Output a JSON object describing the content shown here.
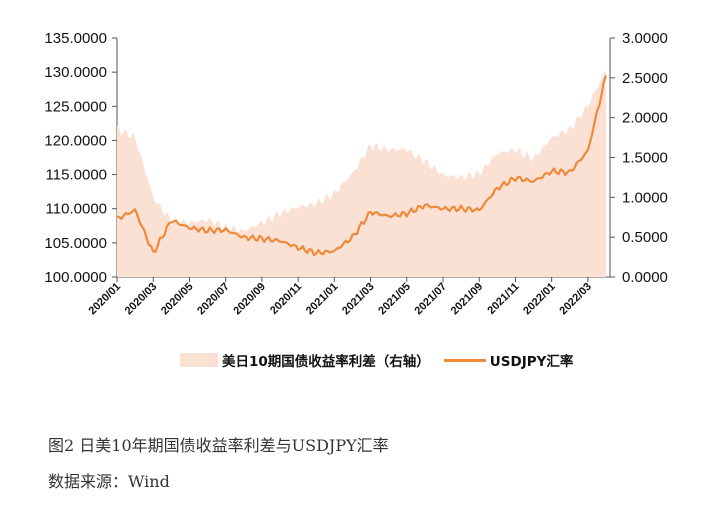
{
  "chart_data": {
    "type": "line",
    "x_tick_labels": [
      "2020/01",
      "2020/03",
      "2020/05",
      "2020/07",
      "2020/09",
      "2020/11",
      "2021/01",
      "2021/03",
      "2021/05",
      "2021/07",
      "2021/09",
      "2021/11",
      "2022/01",
      "2022/03"
    ],
    "y_left": {
      "ticks": [
        "100.0000",
        "105.0000",
        "110.0000",
        "115.0000",
        "120.0000",
        "125.0000",
        "130.0000",
        "135.0000"
      ],
      "ylim": [
        100,
        135
      ]
    },
    "y_right": {
      "ticks": [
        "0.0000",
        "0.5000",
        "1.0000",
        "1.5000",
        "2.0000",
        "2.5000",
        "3.0000"
      ],
      "ylim": [
        0,
        3
      ]
    },
    "series": [
      {
        "name": "美日10期国债收益率利差（右轴）",
        "type": "area",
        "axis": "right",
        "color": "#fbe1d3",
        "x": [
          "2020/01",
          "2020/02",
          "2020/03",
          "2020/04",
          "2020/05",
          "2020/06",
          "2020/07",
          "2020/08",
          "2020/09",
          "2020/10",
          "2020/11",
          "2020/12",
          "2021/01",
          "2021/02",
          "2021/03",
          "2021/04",
          "2021/05",
          "2021/06",
          "2021/07",
          "2021/08",
          "2021/09",
          "2021/10",
          "2021/11",
          "2021/12",
          "2022/01",
          "2022/02",
          "2022/03",
          "2022/04"
        ],
        "values": [
          1.85,
          1.75,
          1.0,
          0.7,
          0.68,
          0.72,
          0.62,
          0.58,
          0.68,
          0.8,
          0.88,
          0.92,
          1.05,
          1.3,
          1.65,
          1.6,
          1.6,
          1.45,
          1.28,
          1.25,
          1.3,
          1.55,
          1.6,
          1.48,
          1.75,
          1.85,
          2.15,
          2.6
        ]
      },
      {
        "name": "USDJPY汇率",
        "type": "line",
        "axis": "left",
        "color": "#ed8a3c",
        "x": [
          "2020/01",
          "2020/02",
          "2020/03",
          "2020/04",
          "2020/05",
          "2020/06",
          "2020/07",
          "2020/08",
          "2020/09",
          "2020/10",
          "2020/11",
          "2020/12",
          "2021/01",
          "2021/02",
          "2021/03",
          "2021/04",
          "2021/05",
          "2021/06",
          "2021/07",
          "2021/08",
          "2021/09",
          "2021/10",
          "2021/11",
          "2021/12",
          "2022/01",
          "2022/02",
          "2022/03",
          "2022/04"
        ],
        "values": [
          108.5,
          109.8,
          103.5,
          108.3,
          107.2,
          106.8,
          106.9,
          105.8,
          105.6,
          105.3,
          104.3,
          103.5,
          103.8,
          105.8,
          109.5,
          108.9,
          109.3,
          110.5,
          110.0,
          110.0,
          109.8,
          113.0,
          114.5,
          114.0,
          115.5,
          115.3,
          118.5,
          129.5
        ]
      }
    ]
  },
  "legend": {
    "area_label": "美日10期国债收益率利差（右轴）",
    "line_label": "USDJPY汇率"
  },
  "caption": {
    "title": "图2 日美10年期国债收益率利差与USDJPY汇率",
    "source": "数据来源：Wind"
  }
}
